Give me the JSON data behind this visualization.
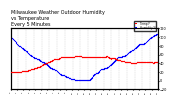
{
  "title": "Milwaukee Weather Outdoor Humidity\nvs Temperature\nEvery 5 Minutes",
  "title_fontsize": 3.5,
  "background_color": "#ffffff",
  "plot_bg_color": "#ffffff",
  "blue_color": "#0000ff",
  "red_color": "#ff0000",
  "legend_blue_label": "Humidity %",
  "legend_red_label": "Temp F",
  "ylim_left": [
    0,
    100
  ],
  "ylim_right": [
    -20,
    120
  ],
  "grid_color": "#cccccc",
  "marker_size": 0.8,
  "num_points": 288
}
